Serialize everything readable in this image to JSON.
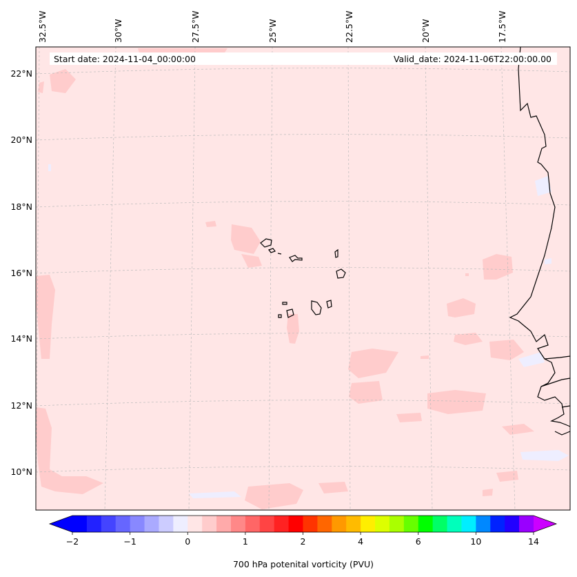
{
  "header": {
    "start_date": "Start date: 2024-11-04_00:00:00",
    "valid_date": "Valid_date: 2024-11-06T22:00:00.00"
  },
  "map": {
    "lon_labels": [
      "32.5°W",
      "30°W",
      "27.5°W",
      "25°W",
      "22.5°W",
      "20°W",
      "17.5°W"
    ],
    "lat_labels": [
      "22°N",
      "20°N",
      "18°N",
      "16°N",
      "14°N",
      "12°N",
      "10°N"
    ],
    "background_color": "#ffe6e6",
    "anomaly_color": "#ffcccc",
    "low_color": "#eeeeff",
    "coast_color": "#000000"
  },
  "colorbar": {
    "label": "700 hPa potenital vorticity (PVU)",
    "ticks": [
      "−2",
      "−1",
      "0",
      "1",
      "2",
      "4",
      "6",
      "10",
      "14"
    ],
    "colors": [
      "#0000ff",
      "#2222ff",
      "#4444ff",
      "#6666ff",
      "#8888ff",
      "#aaaaff",
      "#ccccff",
      "#eeeeff",
      "#ffe6e6",
      "#ffcccc",
      "#ffaaaa",
      "#ff8888",
      "#ff6666",
      "#ff4444",
      "#ff2222",
      "#ff0000",
      "#ff3300",
      "#ff6600",
      "#ff9900",
      "#ffbb00",
      "#ffee00",
      "#ddff00",
      "#aaff00",
      "#66ff00",
      "#00ff00",
      "#00ff66",
      "#00ffbb",
      "#00eeff",
      "#0088ff",
      "#0022ff",
      "#2200ff",
      "#9900ff"
    ],
    "under_color": "#0000ff",
    "over_color": "#cc00ff"
  }
}
